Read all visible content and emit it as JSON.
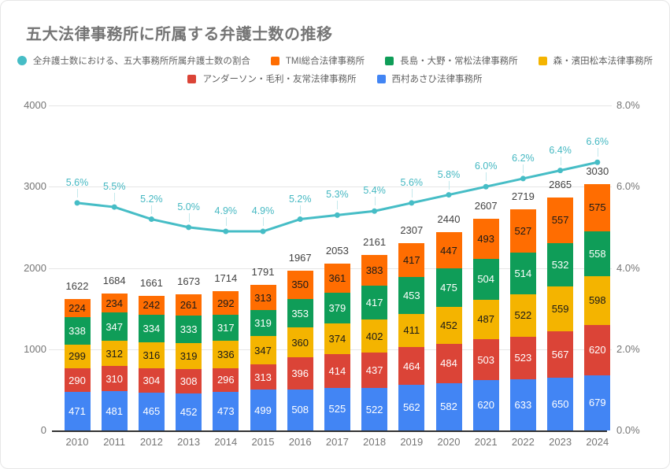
{
  "title": "五大法律事務所に所属する弁護士数の推移",
  "colors": {
    "line": "#46BDC6",
    "tmi": "#FF6D01",
    "nagashima": "#0F9D58",
    "mori": "#F4B400",
    "anderson": "#DB4437",
    "nishimura": "#4285F4",
    "grid": "#e6e6e6",
    "axis_text": "#757575",
    "total_text": "#424242"
  },
  "legend": {
    "rows": [
      [
        {
          "key": "ratio",
          "shape": "circle",
          "color": "#46BDC6",
          "label": "全弁護士数における、五大事務所所属弁護士数の割合"
        },
        {
          "key": "tmi",
          "shape": "square",
          "color": "#FF6D01",
          "label": "TMI総合法律事務所"
        },
        {
          "key": "nagashima",
          "shape": "square",
          "color": "#0F9D58",
          "label": "長島・大野・常松法律事務所"
        },
        {
          "key": "mori",
          "shape": "square",
          "color": "#F4B400",
          "label": "森・濱田松本法律事務所"
        }
      ],
      [
        {
          "key": "anderson",
          "shape": "square",
          "color": "#DB4437",
          "label": "アンダーソン・毛利・友常法律事務所"
        },
        {
          "key": "nishimura",
          "shape": "square",
          "color": "#4285F4",
          "label": "西村あさひ法律事務所"
        }
      ]
    ]
  },
  "chart_data": {
    "type": "bar",
    "subtype": "stacked-bars-with-percentage-line",
    "title": "五大法律事務所に所属する弁護士数の推移",
    "categories": [
      "2010",
      "2011",
      "2012",
      "2013",
      "2014",
      "2015",
      "2016",
      "2017",
      "2018",
      "2019",
      "2020",
      "2021",
      "2022",
      "2023",
      "2024"
    ],
    "series": [
      {
        "key": "nishimura",
        "name": "西村あさひ法律事務所",
        "color": "#4285F4",
        "text": "#ffffff",
        "values": [
          471,
          481,
          465,
          452,
          473,
          499,
          508,
          525,
          522,
          562,
          582,
          620,
          633,
          650,
          679
        ]
      },
      {
        "key": "anderson",
        "name": "アンダーソン・毛利・友常法律事務所",
        "color": "#DB4437",
        "text": "#ffffff",
        "values": [
          290,
          310,
          304,
          308,
          296,
          313,
          396,
          414,
          437,
          464,
          484,
          503,
          523,
          567,
          620
        ]
      },
      {
        "key": "mori",
        "name": "森・濱田松本法律事務所",
        "color": "#F4B400",
        "text": "#1a1a1a",
        "values": [
          299,
          312,
          316,
          319,
          336,
          347,
          360,
          374,
          402,
          411,
          452,
          487,
          522,
          559,
          598
        ]
      },
      {
        "key": "nagashima",
        "name": "長島・大野・常松法律事務所",
        "color": "#0F9D58",
        "text": "#ffffff",
        "values": [
          338,
          347,
          334,
          333,
          317,
          319,
          353,
          379,
          417,
          453,
          475,
          504,
          514,
          532,
          558
        ]
      },
      {
        "key": "tmi",
        "name": "TMI総合法律事務所",
        "color": "#FF6D01",
        "text": "#1a1a1a",
        "values": [
          224,
          234,
          242,
          261,
          292,
          313,
          350,
          361,
          383,
          417,
          447,
          493,
          527,
          557,
          575
        ]
      }
    ],
    "totals": [
      1622,
      1684,
      1661,
      1673,
      1714,
      1791,
      1967,
      2053,
      2161,
      2307,
      2440,
      2607,
      2719,
      2865,
      3030
    ],
    "line": {
      "key": "ratio",
      "name": "全弁護士数における、五大事務所所属弁護士数の割合",
      "color": "#46BDC6",
      "values_pct": [
        5.6,
        5.5,
        5.2,
        5.0,
        4.9,
        4.9,
        5.2,
        5.3,
        5.4,
        5.6,
        5.8,
        6.0,
        6.2,
        6.4,
        6.6
      ],
      "labels": [
        "5.6%",
        "5.5%",
        "5.2%",
        "5.0%",
        "4.9%",
        "4.9%",
        "5.2%",
        "5.3%",
        "5.4%",
        "5.6%",
        "5.8%",
        "6.0%",
        "6.2%",
        "6.4%",
        "6.6%"
      ]
    },
    "left_axis": {
      "max": 4000,
      "ticks": [
        "4000",
        "3000",
        "2000",
        "1000",
        "0"
      ]
    },
    "right_axis": {
      "max_pct": 8,
      "ticks": [
        "8.0%",
        "6.0%",
        "4.0%",
        "2.0%",
        "0.0%"
      ]
    },
    "grid": true,
    "legend_position": "top"
  }
}
